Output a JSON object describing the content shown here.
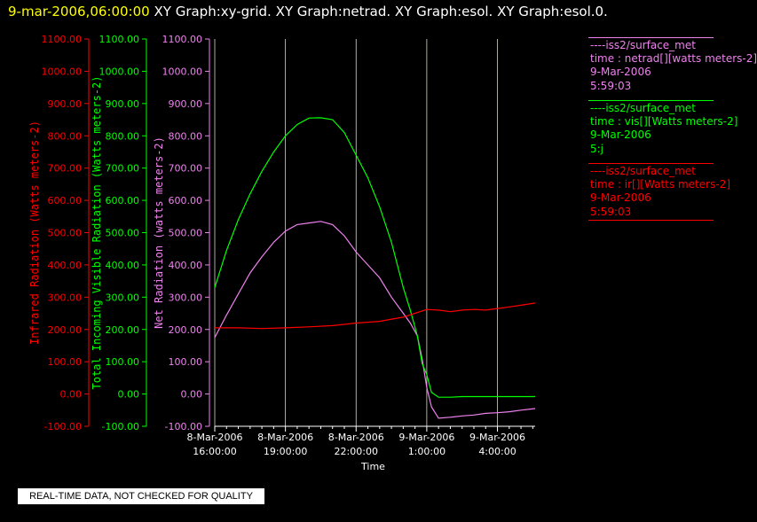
{
  "header": {
    "timestamp": "9-mar-2006,06:00:00",
    "graph_list": "XY Graph:xy-grid.  XY Graph:netrad.  XY Graph:esol.  XY Graph:esol.0."
  },
  "legend": [
    {
      "source": "----iss2/surface_met",
      "variable": "time : netrad[][watts meters-2]",
      "date": "9-Mar-2006",
      "time": "5:59:03",
      "color": "#ee82ee"
    },
    {
      "source": "----iss2/surface_met",
      "variable": "time : vis[][Watts meters-2]",
      "date": "9-Mar-2006",
      "time": "5:j",
      "color": "#00ff00"
    },
    {
      "source": "----iss2/surface_met",
      "variable": "time : ir[][Watts meters-2]",
      "date": "9-Mar-2006",
      "time": "5:59:03",
      "color": "#ff0000"
    }
  ],
  "footer": {
    "qc_note": "REAL-TIME DATA, NOT CHECKED FOR QUALITY"
  },
  "chart_data": {
    "type": "line",
    "xlabel": "Time",
    "x_unit": "hours since 8-Mar-2006 16:00:00",
    "xlim": [
      0,
      13.6
    ],
    "x_ticks": [
      {
        "x": 0,
        "date": "8-Mar-2006",
        "time": "16:00:00"
      },
      {
        "x": 3,
        "date": "8-Mar-2006",
        "time": "19:00:00"
      },
      {
        "x": 6,
        "date": "8-Mar-2006",
        "time": "22:00:00"
      },
      {
        "x": 9,
        "date": "9-Mar-2006",
        "time": "1:00:00"
      },
      {
        "x": 12,
        "date": "9-Mar-2006",
        "time": "4:00:00"
      }
    ],
    "ylim": [
      -100,
      1100
    ],
    "y_ticks": [
      "1100.00",
      "1000.00",
      "900.00",
      "800.00",
      "700.00",
      "600.00",
      "500.00",
      "400.00",
      "300.00",
      "200.00",
      "100.00",
      "0.00",
      "-100.00"
    ],
    "y_axes": [
      {
        "label": "Infrared Radiation (Watts meters-2)",
        "color": "#ff0000"
      },
      {
        "label": "Total Incoming Visible Radiation (Watts meters-2)",
        "color": "#00ff00"
      },
      {
        "label": "Net Radiation (watts meters-2)",
        "color": "#ee82ee"
      }
    ],
    "grid": "vertical lines at x ticks",
    "series": [
      {
        "name": "netrad",
        "color": "#ee82ee",
        "x": [
          0,
          0.5,
          1,
          1.5,
          2,
          2.5,
          3,
          3.5,
          4,
          4.5,
          5,
          5.5,
          6,
          6.5,
          7,
          7.5,
          8,
          8.3,
          8.6,
          8.8,
          9,
          9.2,
          9.5,
          10,
          10.5,
          11,
          11.5,
          12,
          12.5,
          13,
          13.6
        ],
        "y": [
          175,
          245,
          310,
          375,
          425,
          470,
          505,
          525,
          530,
          535,
          525,
          490,
          440,
          400,
          360,
          300,
          250,
          220,
          180,
          110,
          20,
          -40,
          -75,
          -72,
          -68,
          -65,
          -60,
          -58,
          -55,
          -50,
          -45
        ]
      },
      {
        "name": "vis",
        "color": "#00ff00",
        "x": [
          0,
          0.5,
          1,
          1.5,
          2,
          2.5,
          3,
          3.5,
          4,
          4.5,
          5,
          5.5,
          6,
          6.5,
          7,
          7.5,
          8,
          8.3,
          8.6,
          8.8,
          9,
          9.2,
          9.5,
          10,
          10.5,
          11,
          11.5,
          12,
          12.5,
          13,
          13.6
        ],
        "y": [
          330,
          445,
          540,
          620,
          690,
          750,
          800,
          835,
          855,
          856,
          850,
          810,
          740,
          670,
          580,
          470,
          330,
          260,
          180,
          95,
          60,
          5,
          -10,
          -10,
          -8,
          -8,
          -8,
          -8,
          -8,
          -8,
          -8
        ]
      },
      {
        "name": "ir",
        "color": "#ff0000",
        "x": [
          0,
          1,
          2,
          3,
          4,
          5,
          6,
          7,
          7.5,
          8,
          8.5,
          9,
          9.5,
          10,
          10.5,
          11,
          11.5,
          12,
          12.5,
          13,
          13.6
        ],
        "y": [
          205,
          205,
          203,
          205,
          208,
          212,
          220,
          225,
          232,
          238,
          250,
          262,
          260,
          255,
          260,
          262,
          260,
          265,
          270,
          275,
          282
        ]
      }
    ]
  }
}
